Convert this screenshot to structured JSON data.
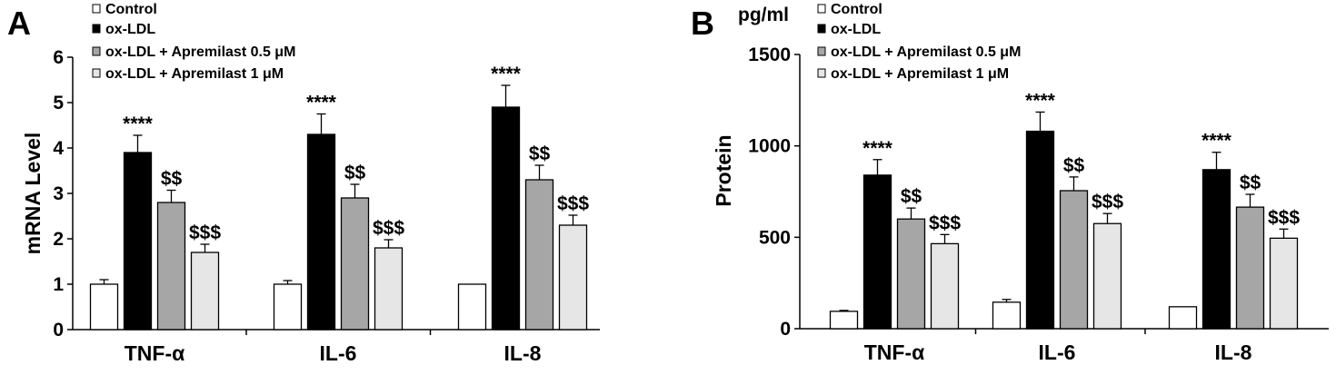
{
  "chart_data": [
    {
      "type": "bar",
      "panel_label": "A",
      "ylabel": "mRNA Level",
      "unit_label": "",
      "ylim": [
        0,
        6
      ],
      "yticks": [
        "0",
        "1",
        "2",
        "3",
        "4",
        "5",
        "6"
      ],
      "categories": [
        "TNF-α",
        "IL-6",
        "IL-8"
      ],
      "legend_position": "top-left",
      "series": [
        {
          "name": "Control",
          "color": "#ffffff",
          "values": [
            1.0,
            1.0,
            1.0
          ],
          "errors": [
            0.1,
            0.08,
            0.0
          ],
          "annotations": [
            "",
            "",
            ""
          ]
        },
        {
          "name": "ox-LDL",
          "color": "#000000",
          "values": [
            3.9,
            4.3,
            4.9
          ],
          "errors": [
            0.38,
            0.45,
            0.48
          ],
          "annotations": [
            "****",
            "****",
            "****"
          ]
        },
        {
          "name": "ox-LDL + Apremilast 0.5 μM",
          "color": "#a6a6a6",
          "values": [
            2.8,
            2.9,
            3.3
          ],
          "errors": [
            0.27,
            0.3,
            0.32
          ],
          "annotations": [
            "$$",
            "$$",
            "$$"
          ]
        },
        {
          "name": "ox-LDL + Apremilast    1 μM",
          "color": "#e6e6e6",
          "values": [
            1.7,
            1.8,
            2.3
          ],
          "errors": [
            0.18,
            0.18,
            0.22
          ],
          "annotations": [
            "$$$",
            "$$$",
            "$$$"
          ]
        }
      ]
    },
    {
      "type": "bar",
      "panel_label": "B",
      "ylabel": "Protein",
      "unit_label": "pg/ml",
      "ylim": [
        0,
        1500
      ],
      "yticks": [
        "0",
        "500",
        "1000",
        "1500"
      ],
      "categories": [
        "TNF-α",
        "IL-6",
        "IL-8"
      ],
      "legend_position": "top-left",
      "series": [
        {
          "name": "Control",
          "color": "#ffffff",
          "values": [
            95,
            145,
            120
          ],
          "errors": [
            5,
            15,
            0
          ],
          "annotations": [
            "",
            "",
            ""
          ]
        },
        {
          "name": "ox-LDL",
          "color": "#000000",
          "values": [
            840,
            1080,
            870
          ],
          "errors": [
            85,
            105,
            95
          ],
          "annotations": [
            "****",
            "****",
            "****"
          ]
        },
        {
          "name": "ox-LDL + Apremilast 0.5 μM",
          "color": "#a6a6a6",
          "values": [
            600,
            755,
            665
          ],
          "errors": [
            60,
            75,
            70
          ],
          "annotations": [
            "$$",
            "$$",
            "$$"
          ]
        },
        {
          "name": "ox-LDL + Apremilast    1 μM",
          "color": "#e6e6e6",
          "values": [
            465,
            575,
            495
          ],
          "errors": [
            50,
            55,
            50
          ],
          "annotations": [
            "$$$",
            "$$$",
            "$$$"
          ]
        }
      ]
    }
  ]
}
